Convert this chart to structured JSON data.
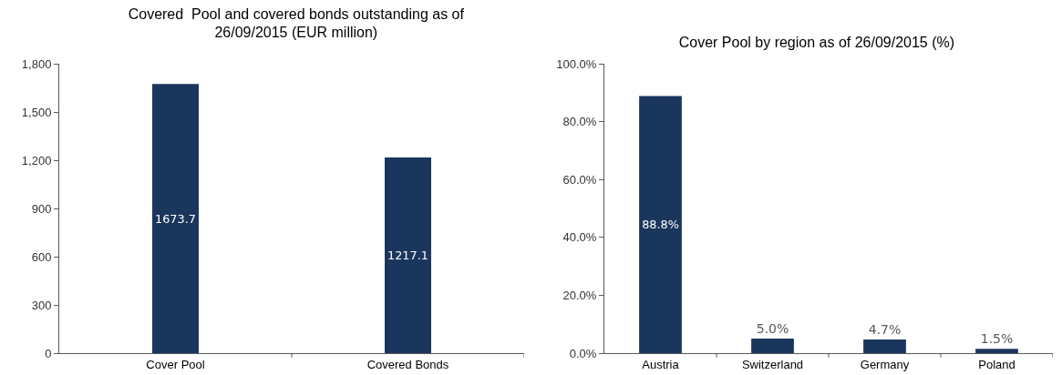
{
  "chart_data": [
    {
      "type": "bar",
      "title": "Covered  Pool and covered bonds outstanding as of\n26/09/2015 (EUR million)",
      "categories": [
        "Cover Pool",
        "Covered Bonds"
      ],
      "values": [
        1673.7,
        1217.1
      ],
      "color": "#1b365d",
      "value_labels": [
        "1673.7",
        "1217.1"
      ],
      "ylim": [
        0,
        1800
      ],
      "yticks": [
        0,
        300,
        600,
        900,
        {
          "value": 1200,
          "label": "1,200"
        },
        {
          "value": 1500,
          "label": "1,500"
        },
        {
          "value": 1800,
          "label": "1,800"
        }
      ]
    },
    {
      "type": "bar",
      "title": "Cover Pool by region as of 26/09/2015 (%)",
      "categories": [
        "Austria",
        "Switzerland",
        "Germany",
        "Poland"
      ],
      "values": [
        88.8,
        5.0,
        4.7,
        1.5
      ],
      "color": "#1b365d",
      "value_labels": [
        "88.8%",
        "5.0%",
        "4.7%",
        "1.5%"
      ],
      "ylim": [
        0,
        100
      ],
      "yticks": [
        {
          "value": 0,
          "label": "0.0%"
        },
        {
          "value": 20,
          "label": "20.0%"
        },
        {
          "value": 40,
          "label": "40.0%"
        },
        {
          "value": 60,
          "label": "60.0%"
        },
        {
          "value": 80,
          "label": "80.0%"
        },
        {
          "value": 100,
          "label": "100.0%"
        }
      ]
    }
  ]
}
